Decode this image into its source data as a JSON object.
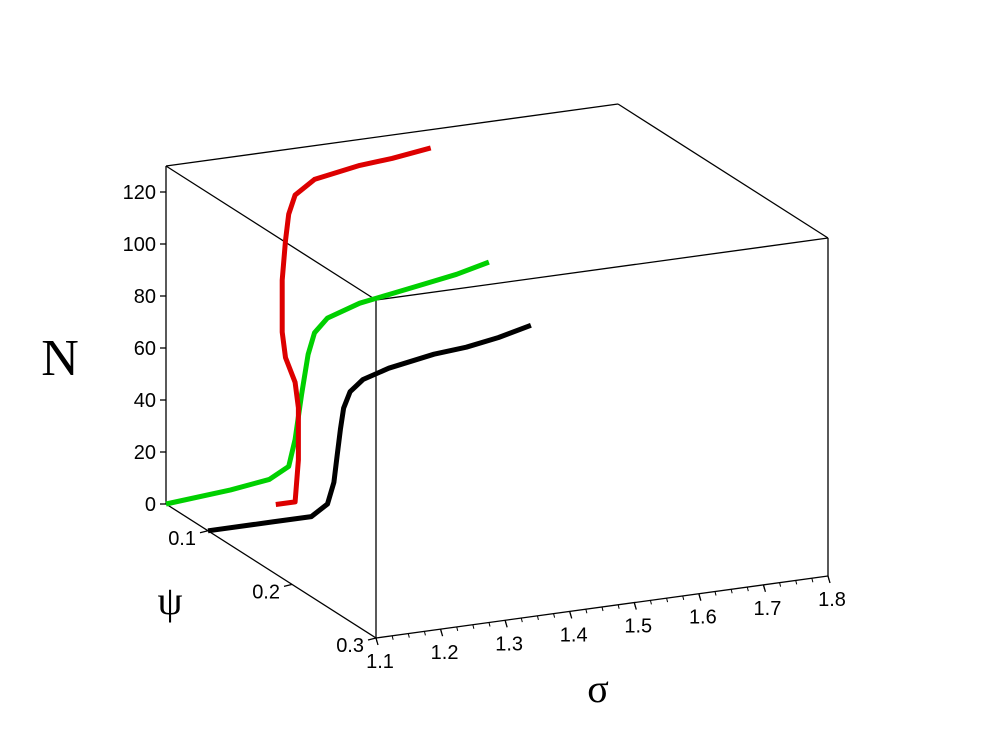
{
  "chart_data": {
    "type": "line3d",
    "axes": {
      "x": {
        "label": "σ",
        "ticks": [
          "1.1",
          "1.2",
          "1.3",
          "1.4",
          "1.5",
          "1.6",
          "1.7",
          "1.8"
        ],
        "range": [
          1.1,
          1.8
        ]
      },
      "y": {
        "label": "ψ",
        "ticks": [
          "0.1",
          "0.2",
          "0.3"
        ],
        "range": [
          0.05,
          0.3
        ]
      },
      "z": {
        "label": "N",
        "ticks": [
          "0",
          "20",
          "40",
          "60",
          "80",
          "100",
          "120"
        ],
        "range": [
          0,
          130
        ]
      }
    },
    "grid": false,
    "series": [
      {
        "color": "#000000",
        "points": [
          [
            1.1,
            0.1,
            0
          ],
          [
            1.2,
            0.1,
            0
          ],
          [
            1.26,
            0.1,
            0
          ],
          [
            1.285,
            0.1,
            4
          ],
          [
            1.295,
            0.1,
            12
          ],
          [
            1.3,
            0.1,
            22
          ],
          [
            1.305,
            0.1,
            32
          ],
          [
            1.31,
            0.1,
            40
          ],
          [
            1.32,
            0.1,
            46
          ],
          [
            1.34,
            0.1,
            50
          ],
          [
            1.38,
            0.1,
            53
          ],
          [
            1.45,
            0.1,
            56
          ],
          [
            1.5,
            0.1,
            57
          ],
          [
            1.55,
            0.1,
            59
          ],
          [
            1.6,
            0.1,
            62
          ]
        ]
      },
      {
        "color": "#00d000",
        "points": [
          [
            1.1,
            0.05,
            0
          ],
          [
            1.2,
            0.05,
            2
          ],
          [
            1.26,
            0.05,
            4
          ],
          [
            1.29,
            0.05,
            8
          ],
          [
            1.3,
            0.05,
            18
          ],
          [
            1.31,
            0.05,
            35
          ],
          [
            1.32,
            0.05,
            50
          ],
          [
            1.33,
            0.05,
            58
          ],
          [
            1.35,
            0.05,
            63
          ],
          [
            1.4,
            0.05,
            67
          ],
          [
            1.45,
            0.05,
            69
          ],
          [
            1.5,
            0.05,
            71
          ],
          [
            1.55,
            0.05,
            73
          ],
          [
            1.6,
            0.05,
            76
          ]
        ]
      },
      {
        "color": "#dd0000",
        "points": [
          [
            1.27,
            0.05,
            -6
          ],
          [
            1.3,
            0.05,
            -6
          ],
          [
            1.305,
            0.05,
            10
          ],
          [
            1.305,
            0.05,
            30
          ],
          [
            1.3,
            0.05,
            40
          ],
          [
            1.285,
            0.05,
            50
          ],
          [
            1.28,
            0.05,
            60
          ],
          [
            1.28,
            0.05,
            80
          ],
          [
            1.285,
            0.05,
            95
          ],
          [
            1.29,
            0.05,
            105
          ],
          [
            1.3,
            0.05,
            112
          ],
          [
            1.33,
            0.05,
            117
          ],
          [
            1.4,
            0.05,
            120
          ],
          [
            1.45,
            0.05,
            121
          ],
          [
            1.51,
            0.05,
            123
          ]
        ]
      }
    ]
  }
}
